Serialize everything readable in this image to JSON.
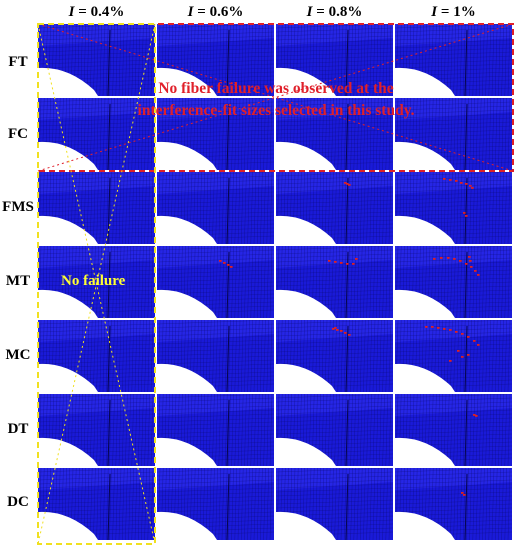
{
  "columns": [
    {
      "var": "I",
      "value": " = 0.4%"
    },
    {
      "var": "I",
      "value": " = 0.6%"
    },
    {
      "var": "I",
      "value": " = 0.8%"
    },
    {
      "var": "I",
      "value": " = 1%"
    }
  ],
  "rows": [
    "FT",
    "FC",
    "FMS",
    "MT",
    "MC",
    "DT",
    "DC"
  ],
  "fiber_notice": {
    "line1": "No fiber failure was observed at the",
    "line2": "interference-fit sizes selected in this study."
  },
  "no_failure_label": "No failure",
  "colors": {
    "mesh": "#1a1ad8",
    "mesh_line": "#0a0a6a",
    "hole": "#ffffff",
    "failure": "#e02020",
    "notice_text": "#e0202a",
    "notice_border": "#e0202a",
    "no_failure_text": "#ffff33",
    "no_failure_border": "#f0e020"
  },
  "failure_present": {
    "FMS": [
      false,
      false,
      true,
      true
    ],
    "MT": [
      false,
      true,
      true,
      true
    ],
    "MC": [
      false,
      false,
      true,
      true
    ],
    "DT": [
      false,
      false,
      false,
      true
    ],
    "DC": [
      false,
      false,
      false,
      true
    ]
  }
}
